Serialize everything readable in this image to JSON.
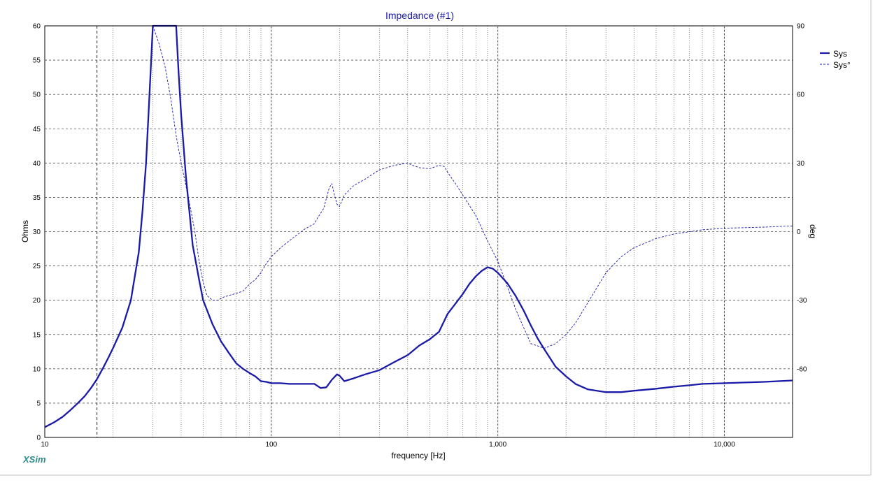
{
  "brand": "XSim",
  "chart_data": {
    "type": "line",
    "title": "Impedance (#1)",
    "xlabel": "frequency [Hz]",
    "ylabel": "Ohms",
    "y2label": "deg",
    "xscale": "log",
    "xlim": [
      10,
      20000
    ],
    "ylim": [
      0,
      60
    ],
    "y2lim": [
      -90,
      90
    ],
    "xticks": [
      {
        "value": 10,
        "label": "10"
      },
      {
        "value": 100,
        "label": "100"
      },
      {
        "value": 1000,
        "label": "1,000"
      },
      {
        "value": 10000,
        "label": "10,000"
      }
    ],
    "yticks": [
      0,
      5,
      10,
      15,
      20,
      25,
      30,
      35,
      40,
      45,
      50,
      55,
      60
    ],
    "y2ticks": [
      -60,
      -30,
      0,
      30,
      60,
      90
    ],
    "grid": true,
    "marker_x": 17,
    "legend_position": "top-right",
    "series": [
      {
        "name": "Sys",
        "axis": "left",
        "style": "solid-thick",
        "color": "#1a1aa8",
        "points": [
          [
            10,
            1.5
          ],
          [
            11,
            2.2
          ],
          [
            12,
            3.0
          ],
          [
            13,
            4.0
          ],
          [
            14,
            5.0
          ],
          [
            15,
            6.0
          ],
          [
            16,
            7.2
          ],
          [
            17,
            8.5
          ],
          [
            18,
            10
          ],
          [
            19,
            11.5
          ],
          [
            20,
            13
          ],
          [
            22,
            16
          ],
          [
            24,
            20
          ],
          [
            26,
            27
          ],
          [
            27,
            33
          ],
          [
            28,
            40
          ],
          [
            29,
            50
          ],
          [
            30,
            60
          ],
          [
            38,
            60
          ],
          [
            39,
            53
          ],
          [
            40,
            47
          ],
          [
            42,
            38
          ],
          [
            45,
            28
          ],
          [
            48,
            23
          ],
          [
            50,
            20
          ],
          [
            55,
            16.5
          ],
          [
            60,
            14
          ],
          [
            65,
            12.3
          ],
          [
            70,
            10.8
          ],
          [
            75,
            10
          ],
          [
            80,
            9.4
          ],
          [
            85,
            8.9
          ],
          [
            90,
            8.2
          ],
          [
            95,
            8.1
          ],
          [
            100,
            7.9
          ],
          [
            110,
            7.9
          ],
          [
            120,
            7.8
          ],
          [
            140,
            7.8
          ],
          [
            155,
            7.8
          ],
          [
            165,
            7.2
          ],
          [
            175,
            7.3
          ],
          [
            185,
            8.4
          ],
          [
            195,
            9.2
          ],
          [
            200,
            9.0
          ],
          [
            210,
            8.2
          ],
          [
            230,
            8.6
          ],
          [
            260,
            9.2
          ],
          [
            300,
            9.8
          ],
          [
            350,
            11
          ],
          [
            400,
            12
          ],
          [
            450,
            13.4
          ],
          [
            500,
            14.3
          ],
          [
            550,
            15.4
          ],
          [
            600,
            18
          ],
          [
            650,
            19.5
          ],
          [
            700,
            20.9
          ],
          [
            750,
            22.4
          ],
          [
            800,
            23.5
          ],
          [
            850,
            24.3
          ],
          [
            900,
            24.8
          ],
          [
            950,
            24.6
          ],
          [
            1000,
            24
          ],
          [
            1100,
            22.5
          ],
          [
            1200,
            20.6
          ],
          [
            1300,
            18.5
          ],
          [
            1400,
            16.3
          ],
          [
            1500,
            14.4
          ],
          [
            1600,
            12.9
          ],
          [
            1800,
            10.3
          ],
          [
            2000,
            8.9
          ],
          [
            2200,
            7.8
          ],
          [
            2500,
            7
          ],
          [
            3000,
            6.6
          ],
          [
            3500,
            6.6
          ],
          [
            4000,
            6.8
          ],
          [
            5000,
            7.1
          ],
          [
            6000,
            7.4
          ],
          [
            7000,
            7.6
          ],
          [
            8000,
            7.8
          ],
          [
            10000,
            7.9
          ],
          [
            12000,
            8.0
          ],
          [
            15000,
            8.1
          ],
          [
            20000,
            8.3
          ]
        ]
      },
      {
        "name": "Sys°",
        "axis": "right",
        "style": "dashed-thin",
        "color": "#1a1aa8",
        "points": [
          [
            30,
            90
          ],
          [
            32,
            82
          ],
          [
            34,
            72
          ],
          [
            36,
            58
          ],
          [
            38,
            42
          ],
          [
            40,
            30
          ],
          [
            42,
            20
          ],
          [
            44,
            10
          ],
          [
            46,
            0
          ],
          [
            48,
            -13
          ],
          [
            50,
            -22
          ],
          [
            52,
            -28
          ],
          [
            55,
            -30
          ],
          [
            58,
            -30
          ],
          [
            62,
            -28.5
          ],
          [
            70,
            -27
          ],
          [
            75,
            -26
          ],
          [
            80,
            -23
          ],
          [
            85,
            -21
          ],
          [
            90,
            -18
          ],
          [
            95,
            -14
          ],
          [
            100,
            -11
          ],
          [
            110,
            -7
          ],
          [
            120,
            -4
          ],
          [
            140,
            1
          ],
          [
            155,
            3.5
          ],
          [
            160,
            6
          ],
          [
            170,
            10
          ],
          [
            180,
            19
          ],
          [
            185,
            21
          ],
          [
            190,
            16
          ],
          [
            195,
            12
          ],
          [
            200,
            11
          ],
          [
            210,
            16
          ],
          [
            230,
            20
          ],
          [
            260,
            23
          ],
          [
            300,
            27
          ],
          [
            350,
            29
          ],
          [
            400,
            30
          ],
          [
            420,
            29
          ],
          [
            450,
            28
          ],
          [
            500,
            27.5
          ],
          [
            550,
            29
          ],
          [
            580,
            28.5
          ],
          [
            600,
            26
          ],
          [
            650,
            21
          ],
          [
            700,
            16
          ],
          [
            800,
            7
          ],
          [
            900,
            -4
          ],
          [
            1000,
            -13
          ],
          [
            1100,
            -24
          ],
          [
            1200,
            -34
          ],
          [
            1300,
            -42
          ],
          [
            1400,
            -49
          ],
          [
            1500,
            -50
          ],
          [
            1600,
            -51
          ],
          [
            1700,
            -50
          ],
          [
            1800,
            -49
          ],
          [
            2000,
            -45
          ],
          [
            2200,
            -40
          ],
          [
            2500,
            -31
          ],
          [
            3000,
            -18
          ],
          [
            3500,
            -11
          ],
          [
            4000,
            -7
          ],
          [
            5000,
            -3
          ],
          [
            6000,
            -1
          ],
          [
            8000,
            0.8
          ],
          [
            10000,
            1.5
          ],
          [
            15000,
            2
          ],
          [
            20000,
            2.5
          ]
        ]
      }
    ]
  }
}
